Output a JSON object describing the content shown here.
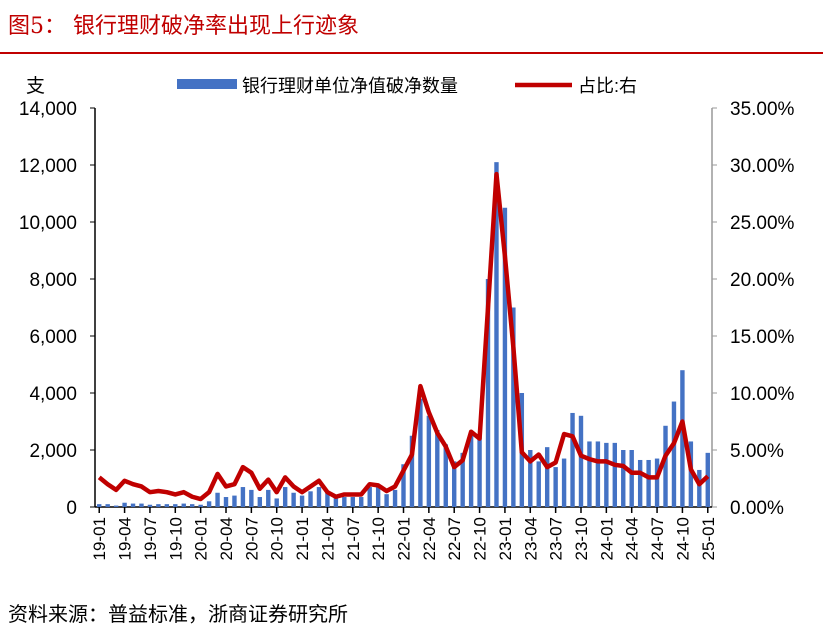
{
  "title": "图5： 银行理财破净率出现上行迹象",
  "source": "资料来源：普益标准，浙商证券研究所",
  "chart_data": {
    "type": "bar+line",
    "left_axis_unit": "支",
    "ylim_left": [
      0,
      14000
    ],
    "ylim_right": [
      0,
      35
    ],
    "left_ticks": [
      "0",
      "2,000",
      "4,000",
      "6,000",
      "8,000",
      "10,000",
      "12,000",
      "14,000"
    ],
    "right_ticks": [
      "0.00%",
      "5.00%",
      "10.00%",
      "15.00%",
      "20.00%",
      "25.00%",
      "30.00%",
      "35.00%"
    ],
    "x_tick_labels": [
      "19-01",
      "19-04",
      "19-07",
      "19-10",
      "20-01",
      "20-04",
      "20-07",
      "20-10",
      "21-01",
      "21-04",
      "21-07",
      "21-10",
      "22-01",
      "22-04",
      "22-07",
      "22-10",
      "23-01",
      "23-04",
      "23-07",
      "23-10",
      "24-01",
      "24-04",
      "24-07",
      "24-10",
      "25-01"
    ],
    "legend_placement": "top",
    "colors": {
      "bar": "#4472c4",
      "line": "#c00000"
    },
    "series": [
      {
        "name": "银行理财单位净值破净数量",
        "type": "bar",
        "axis": "left",
        "values": [
          100,
          100,
          50,
          150,
          120,
          120,
          80,
          100,
          100,
          100,
          120,
          100,
          80,
          200,
          500,
          350,
          400,
          700,
          600,
          350,
          600,
          300,
          700,
          500,
          400,
          550,
          700,
          500,
          350,
          350,
          350,
          350,
          700,
          700,
          450,
          600,
          1500,
          2500,
          3800,
          3200,
          2700,
          2200,
          1600,
          1900,
          2600,
          2500,
          8000,
          12100,
          10500,
          7000,
          4000,
          2000,
          1600,
          2100,
          1400,
          1700,
          3300,
          3200,
          2300,
          2300,
          2250,
          2250,
          2000,
          2000,
          1650,
          1650,
          1700,
          2850,
          3700,
          4800,
          2300,
          1300,
          1900
        ]
      },
      {
        "name": "占比:右",
        "type": "line",
        "axis": "right",
        "unit": "%",
        "values": [
          2.6,
          2.0,
          1.5,
          2.3,
          2.0,
          1.8,
          1.3,
          1.4,
          1.3,
          1.1,
          1.3,
          0.9,
          0.7,
          1.3,
          2.9,
          1.8,
          2.0,
          3.5,
          3.0,
          1.6,
          2.4,
          1.3,
          2.6,
          1.8,
          1.3,
          1.8,
          2.3,
          1.3,
          0.9,
          1.1,
          1.1,
          1.1,
          2.0,
          1.9,
          1.4,
          1.8,
          3.2,
          4.6,
          10.6,
          8.3,
          6.5,
          5.3,
          3.5,
          4.1,
          6.6,
          6.0,
          17.5,
          29.2,
          22.0,
          14.0,
          4.8,
          4.0,
          4.6,
          3.5,
          3.9,
          6.4,
          6.2,
          4.5,
          4.2,
          4.0,
          4.0,
          3.7,
          3.6,
          3.0,
          3.0,
          2.6,
          2.6,
          4.5,
          5.6,
          7.5,
          3.3,
          2.0,
          2.7
        ]
      }
    ]
  }
}
